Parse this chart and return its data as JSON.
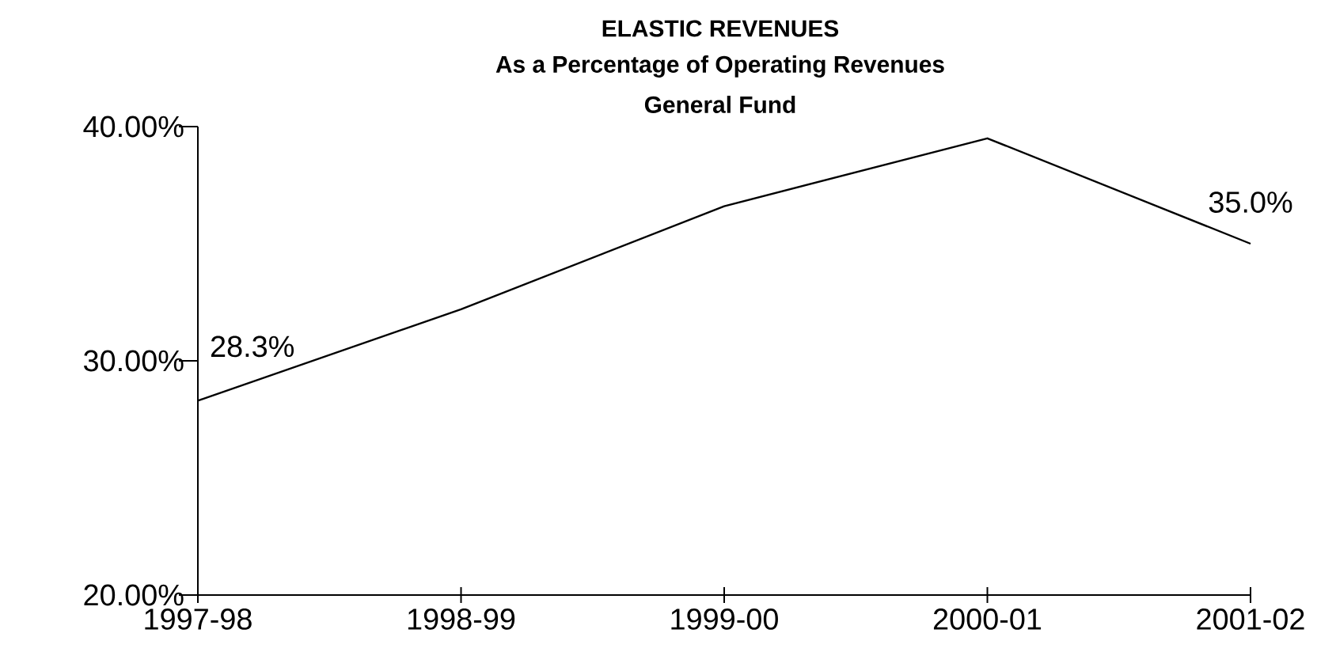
{
  "chart_data": {
    "type": "line",
    "title": "ELASTIC REVENUES",
    "subtitle": "As a Percentage of Operating Revenues",
    "annotations": [
      "General Fund"
    ],
    "categories": [
      "1997-98",
      "1998-99",
      "1999-00",
      "2000-01",
      "2001-02"
    ],
    "values": [
      28.3,
      32.2,
      36.6,
      39.5,
      35.0
    ],
    "value_labels": [
      "28.3%",
      null,
      null,
      null,
      "35.0%"
    ],
    "color": "#000000",
    "ylim": [
      20,
      40
    ],
    "yticks": [
      {
        "value": 20,
        "label": "20.00%"
      },
      {
        "value": 30,
        "label": "30.00%"
      },
      {
        "value": 40,
        "label": "40.00%"
      }
    ],
    "grid": false,
    "marker": "none",
    "line_style": "solid"
  }
}
